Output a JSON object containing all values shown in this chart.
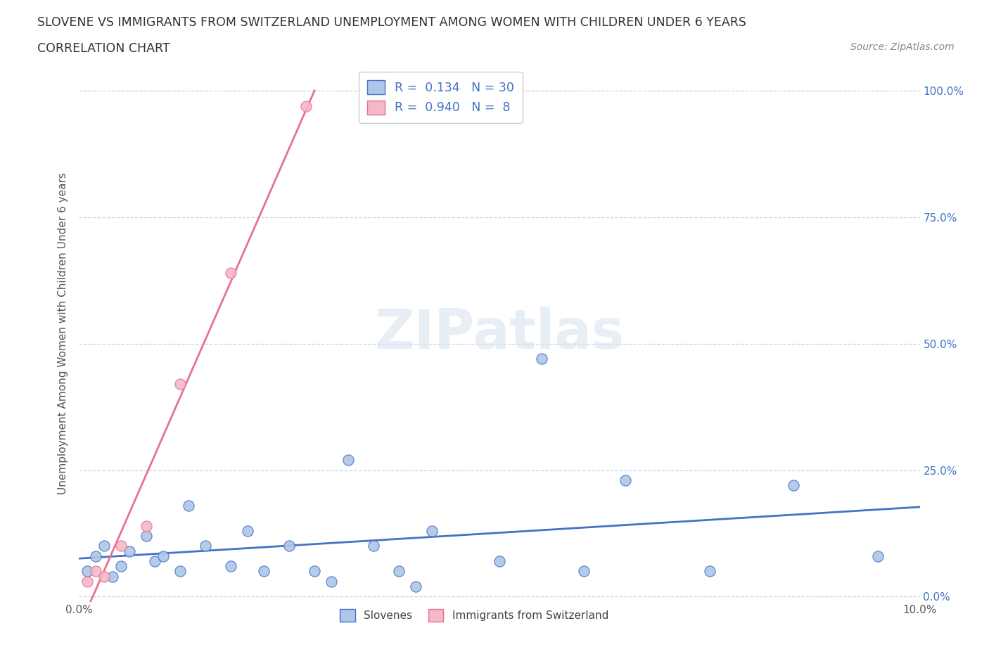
{
  "title_line1": "SLOVENE VS IMMIGRANTS FROM SWITZERLAND UNEMPLOYMENT AMONG WOMEN WITH CHILDREN UNDER 6 YEARS",
  "title_line2": "CORRELATION CHART",
  "source_text": "Source: ZipAtlas.com",
  "ylabel": "Unemployment Among Women with Children Under 6 years",
  "watermark": "ZIPatlas",
  "slovene_x": [
    0.001,
    0.002,
    0.003,
    0.004,
    0.005,
    0.006,
    0.008,
    0.009,
    0.01,
    0.012,
    0.013,
    0.015,
    0.018,
    0.02,
    0.022,
    0.025,
    0.028,
    0.03,
    0.032,
    0.035,
    0.038,
    0.04,
    0.042,
    0.05,
    0.055,
    0.06,
    0.065,
    0.075,
    0.085,
    0.095
  ],
  "slovene_y": [
    0.05,
    0.08,
    0.1,
    0.04,
    0.06,
    0.09,
    0.12,
    0.07,
    0.08,
    0.05,
    0.18,
    0.1,
    0.06,
    0.13,
    0.05,
    0.1,
    0.05,
    0.03,
    0.27,
    0.1,
    0.05,
    0.02,
    0.13,
    0.07,
    0.47,
    0.05,
    0.23,
    0.05,
    0.22,
    0.08
  ],
  "swiss_x": [
    0.001,
    0.002,
    0.003,
    0.005,
    0.008,
    0.012,
    0.018,
    0.027
  ],
  "swiss_y": [
    0.03,
    0.05,
    0.04,
    0.1,
    0.14,
    0.42,
    0.64,
    0.97
  ],
  "slovene_color": "#aec6e8",
  "swiss_color": "#f4b8c8",
  "slovene_line_color": "#4472c4",
  "swiss_line_color": "#e87090",
  "bg_color": "#ffffff",
  "grid_color": "#c8d4e8",
  "watermark_color": "#d8e4f0",
  "R_slovene": 0.134,
  "N_slovene": 30,
  "R_swiss": 0.94,
  "N_swiss": 8,
  "xlim": [
    0.0,
    0.1
  ],
  "ylim": [
    -0.01,
    1.05
  ],
  "ytick_vals": [
    0.0,
    0.25,
    0.5,
    0.75,
    1.0
  ],
  "ytick_labels": [
    "0.0%",
    "25.0%",
    "50.0%",
    "75.0%",
    "100.0%"
  ],
  "xtick_vals": [
    0.0,
    0.025,
    0.05,
    0.075,
    0.1
  ],
  "xtick_labels": [
    "0.0%",
    "",
    "",
    "",
    "10.0%"
  ],
  "right_ytick_labels": [
    "0.0%",
    "25.0%",
    "50.0%",
    "75.0%",
    "100.0%"
  ]
}
